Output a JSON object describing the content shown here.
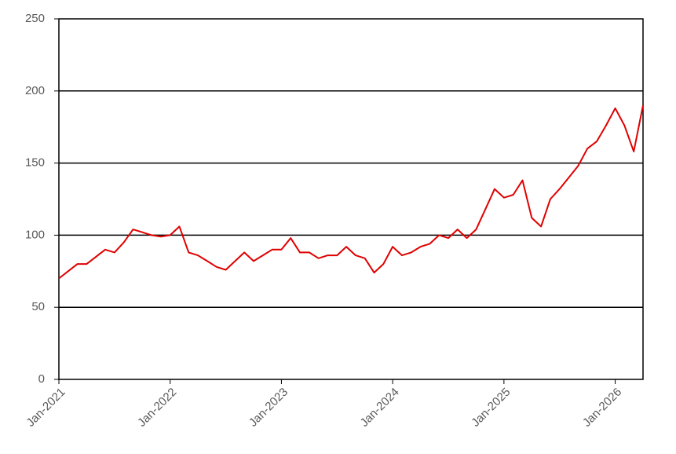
{
  "chart_data": {
    "type": "line",
    "x": [
      "2021-01",
      "2021-02",
      "2021-03",
      "2021-04",
      "2021-05",
      "2021-06",
      "2021-07",
      "2021-08",
      "2021-09",
      "2021-10",
      "2021-11",
      "2021-12",
      "2022-01",
      "2022-02",
      "2022-03",
      "2022-04",
      "2022-05",
      "2022-06",
      "2022-07",
      "2022-08",
      "2022-09",
      "2022-10",
      "2022-11",
      "2022-12",
      "2023-01",
      "2023-02",
      "2023-03",
      "2023-04",
      "2023-05",
      "2023-06",
      "2023-07",
      "2023-08",
      "2023-09",
      "2023-10",
      "2023-11",
      "2023-12",
      "2024-01",
      "2024-02",
      "2024-03",
      "2024-04",
      "2024-05",
      "2024-06",
      "2024-07",
      "2024-08",
      "2024-09",
      "2024-10",
      "2024-11",
      "2024-12",
      "2025-01",
      "2025-02",
      "2025-03",
      "2025-04",
      "2025-05",
      "2025-06",
      "2025-07",
      "2025-08",
      "2025-09",
      "2025-10",
      "2025-11",
      "2025-12",
      "2026-01",
      "2026-02",
      "2026-03",
      "2026-04"
    ],
    "series": [
      {
        "color": "#e00000",
        "values": [
          70,
          75,
          80,
          80,
          85,
          90,
          88,
          95,
          104,
          102,
          100,
          99,
          100,
          106,
          88,
          86,
          82,
          78,
          76,
          82,
          88,
          82,
          86,
          90,
          90,
          98,
          88,
          88,
          84,
          86,
          86,
          92,
          86,
          84,
          74,
          80,
          92,
          86,
          88,
          92,
          94,
          100,
          98,
          104,
          98,
          104,
          118,
          132,
          126,
          128,
          138,
          112,
          106,
          125,
          132,
          140,
          148,
          160,
          165,
          176,
          188,
          176,
          158,
          190
        ]
      }
    ],
    "xlim": [
      "2021-01",
      "2026-04"
    ],
    "xticks": [
      {
        "value": "2021-01",
        "label": "Jan-2021"
      },
      {
        "value": "2022-01",
        "label": "Jan-2022"
      },
      {
        "value": "2023-01",
        "label": "Jan-2023"
      },
      {
        "value": "2024-01",
        "label": "Jan-2024"
      },
      {
        "value": "2025-01",
        "label": "Jan-2025"
      },
      {
        "value": "2026-01",
        "label": "Jan-2026"
      }
    ],
    "ylim": [
      0,
      250
    ],
    "yticks": [
      0,
      50,
      100,
      150,
      200,
      250
    ],
    "grid": true
  }
}
